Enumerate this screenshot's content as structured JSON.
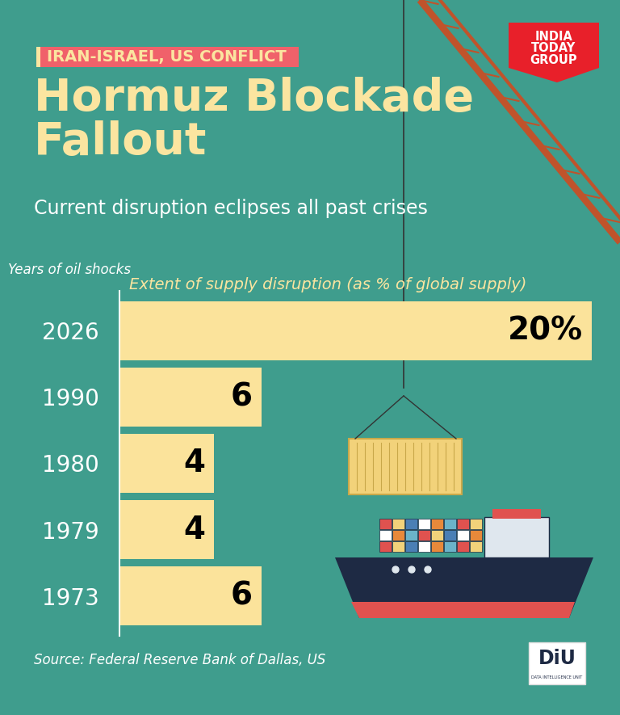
{
  "header": {
    "tag": "IRAN-ISRAEL, US CONFLICT",
    "title": "Hormuz Blockade Fallout",
    "subtitle": "Current disruption eclipses all past crises",
    "brand": [
      "INDIA",
      "TODAY",
      "GROUP"
    ]
  },
  "chart_data": {
    "type": "bar",
    "orientation": "horizontal",
    "y_label": "Years of oil shocks",
    "x_label": "Extent of supply disruption (as % of global supply)",
    "categories": [
      "2026",
      "1990",
      "1980",
      "1979",
      "1973"
    ],
    "values": [
      20,
      6,
      4,
      4,
      6
    ],
    "value_labels": [
      "20%",
      "6",
      "4",
      "4",
      "6"
    ],
    "color": "#fbe39b",
    "xlim": [
      0,
      20
    ],
    "xticks": [],
    "data_labels": true,
    "tick_labels": "y",
    "grid": false
  },
  "footer": {
    "source": "Source: Federal Reserve Bank of Dallas, US",
    "logo": "DiU",
    "logo_caption": "DATA INTELLIGENCE UNIT"
  }
}
